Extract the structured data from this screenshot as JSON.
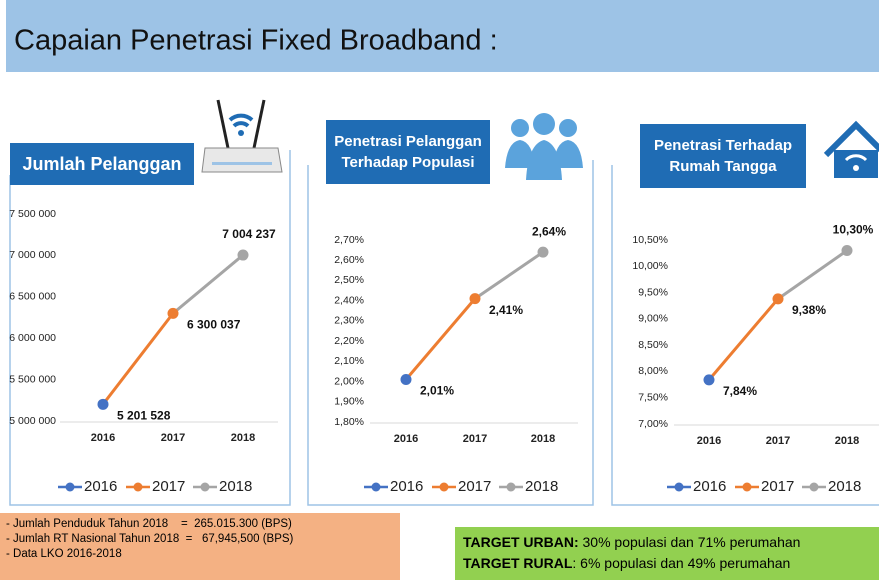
{
  "header": {
    "title": "Capaian Penetrasi Fixed Broadband :"
  },
  "chart_data": [
    {
      "type": "line",
      "title": "Jumlah Pelanggan",
      "categories": [
        "2016",
        "2017",
        "2018"
      ],
      "values": [
        5201528,
        6300037,
        7004237
      ],
      "value_labels": [
        "5 201 528",
        "6 300 037",
        "7 004 237"
      ],
      "colors": [
        "#4472c4",
        "#ed7d31",
        "#a5a5a5"
      ],
      "ylim": [
        5000000,
        7500000
      ],
      "yticks": [
        {
          "value": 5000000,
          "label": "5 000 000"
        },
        {
          "value": 5500000,
          "label": "5 500 000"
        },
        {
          "value": 6000000,
          "label": "6 000 000"
        },
        {
          "value": 6500000,
          "label": "6 500 000"
        },
        {
          "value": 7000000,
          "label": "7 000 000"
        },
        {
          "value": 7500000,
          "label": "7 500 000"
        }
      ],
      "legend": "bottom"
    },
    {
      "type": "line",
      "title": "Penetrasi Pelanggan Terhadap Populasi",
      "categories": [
        "2016",
        "2017",
        "2018"
      ],
      "values": [
        2.01,
        2.41,
        2.64
      ],
      "value_labels": [
        "2,01%",
        "2,41%",
        "2,64%"
      ],
      "colors": [
        "#4472c4",
        "#ed7d31",
        "#a5a5a5"
      ],
      "ylim": [
        1.8,
        2.7
      ],
      "yticks": [
        {
          "value": 1.8,
          "label": "1,80%"
        },
        {
          "value": 1.9,
          "label": "1,90%"
        },
        {
          "value": 2.0,
          "label": "2,00%"
        },
        {
          "value": 2.1,
          "label": "2,10%"
        },
        {
          "value": 2.2,
          "label": "2,20%"
        },
        {
          "value": 2.3,
          "label": "2,30%"
        },
        {
          "value": 2.4,
          "label": "2,40%"
        },
        {
          "value": 2.5,
          "label": "2,50%"
        },
        {
          "value": 2.6,
          "label": "2,60%"
        },
        {
          "value": 2.7,
          "label": "2,70%"
        }
      ],
      "legend": "bottom"
    },
    {
      "type": "line",
      "title": "Penetrasi Terhadap Rumah Tangga",
      "categories": [
        "2016",
        "2017",
        "2018"
      ],
      "values": [
        7.84,
        9.38,
        10.3
      ],
      "value_labels": [
        "7,84%",
        "9,38%",
        "10,30%"
      ],
      "colors": [
        "#4472c4",
        "#ed7d31",
        "#a5a5a5"
      ],
      "ylim": [
        7.0,
        10.5
      ],
      "yticks": [
        {
          "value": 7.0,
          "label": "7,00%"
        },
        {
          "value": 7.5,
          "label": "7,50%"
        },
        {
          "value": 8.0,
          "label": "8,00%"
        },
        {
          "value": 8.5,
          "label": "8,50%"
        },
        {
          "value": 9.0,
          "label": "9,00%"
        },
        {
          "value": 9.5,
          "label": "9,50%"
        },
        {
          "value": 10.0,
          "label": "10,00%"
        },
        {
          "value": 10.5,
          "label": "10,50%"
        }
      ],
      "legend": "bottom"
    }
  ],
  "notes": [
    "- Jumlah Penduduk Tahun 2018    =  265.015.300 (BPS)",
    "- Jumlah RT Nasional Tahun 2018  =   67,945,500 (BPS)",
    "- Data LKO 2016-2018"
  ],
  "targets": [
    {
      "label": "TARGET URBAN:",
      "text": " 30% populasi dan 71% perumahan"
    },
    {
      "label": "TARGET RURAL",
      "text": ": 6% populasi dan 49% perumahan"
    }
  ]
}
